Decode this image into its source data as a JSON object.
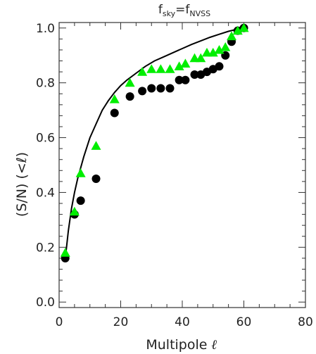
{
  "chart_data": {
    "type": "scatter",
    "title": {
      "lhs": "f",
      "lhs_sub": "sky",
      "eq": "=",
      "rhs": "f",
      "rhs_sub": "NVSS"
    },
    "xlabel": "Multipole",
    "xlabel_symbol": "ℓ",
    "ylabel": "(S/N) (<ℓ)",
    "xlim": [
      0,
      80
    ],
    "ylim": [
      -0.02,
      1.02
    ],
    "xticks": [
      0,
      20,
      40,
      60,
      80
    ],
    "xtick_labels": [
      "0",
      "20",
      "40",
      "60",
      "80"
    ],
    "yticks": [
      0.0,
      0.2,
      0.4,
      0.6,
      0.8,
      1.0
    ],
    "ytick_labels": [
      "0.0",
      "0.2",
      "0.4",
      "0.6",
      "0.8",
      "1.0"
    ],
    "grid": false,
    "legend": "none",
    "series": [
      {
        "marker": "line",
        "color": "#000000",
        "x": [
          2,
          3,
          4,
          5,
          6,
          8,
          10,
          12,
          14,
          16,
          18,
          20,
          22,
          25,
          28,
          31,
          34,
          37,
          40,
          43,
          46,
          49,
          52,
          55,
          58,
          61
        ],
        "y": [
          0.16,
          0.26,
          0.34,
          0.4,
          0.45,
          0.53,
          0.6,
          0.65,
          0.7,
          0.735,
          0.765,
          0.79,
          0.81,
          0.835,
          0.86,
          0.88,
          0.895,
          0.91,
          0.925,
          0.94,
          0.953,
          0.966,
          0.977,
          0.988,
          0.996,
          1.0
        ]
      },
      {
        "marker": "circle",
        "color": "#000000",
        "x": [
          2,
          5,
          7,
          12,
          18,
          23,
          27,
          30,
          33,
          36,
          39,
          41,
          44,
          46,
          48,
          50,
          52,
          54,
          56,
          58,
          60
        ],
        "y": [
          0.16,
          0.32,
          0.37,
          0.45,
          0.69,
          0.75,
          0.77,
          0.78,
          0.78,
          0.78,
          0.81,
          0.81,
          0.83,
          0.83,
          0.84,
          0.85,
          0.86,
          0.9,
          0.95,
          0.99,
          1.0
        ]
      },
      {
        "marker": "triangle",
        "color": "#00ee00",
        "x": [
          2,
          5,
          7,
          12,
          18,
          23,
          27,
          30,
          33,
          36,
          39,
          41,
          44,
          46,
          48,
          50,
          52,
          54,
          56,
          58,
          60
        ],
        "y": [
          0.18,
          0.33,
          0.47,
          0.57,
          0.74,
          0.8,
          0.84,
          0.85,
          0.85,
          0.85,
          0.86,
          0.87,
          0.89,
          0.89,
          0.91,
          0.91,
          0.92,
          0.93,
          0.97,
          0.99,
          1.0
        ]
      }
    ]
  }
}
